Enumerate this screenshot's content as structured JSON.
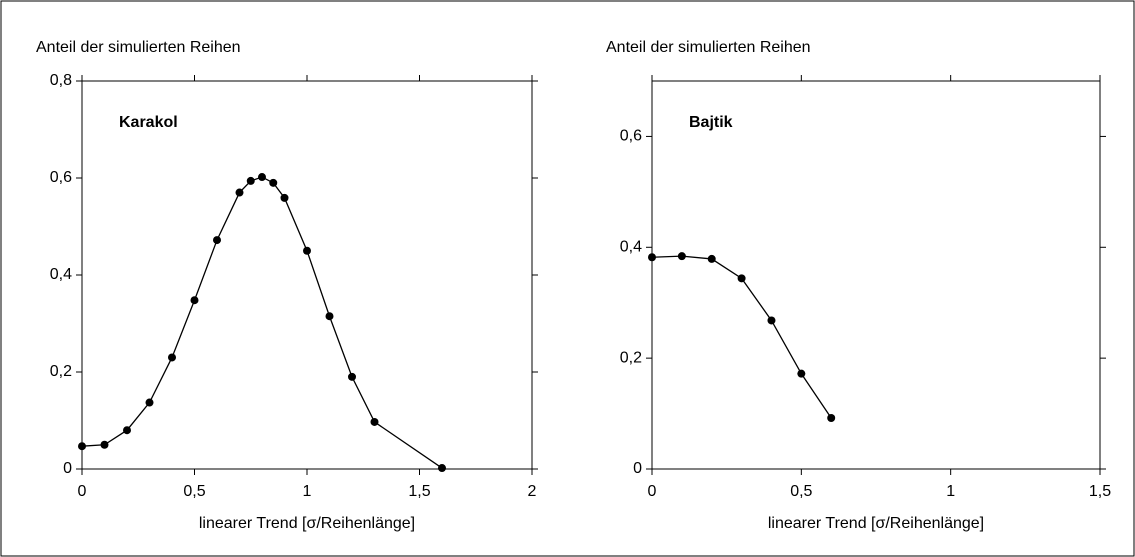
{
  "chart_data": [
    {
      "type": "line",
      "ylabel": "Anteil der simulierten Reihen",
      "xlabel": "linearer Trend [σ/Reihenlänge]",
      "annotation": "Karakol",
      "color": "#000000",
      "x": [
        0,
        0.1,
        0.2,
        0.3,
        0.4,
        0.5,
        0.6,
        0.7,
        0.75,
        0.8,
        0.85,
        0.9,
        1.0,
        1.1,
        1.2,
        1.3,
        1.6
      ],
      "values": [
        0.047,
        0.05,
        0.08,
        0.137,
        0.23,
        0.348,
        0.472,
        0.57,
        0.594,
        0.602,
        0.59,
        0.559,
        0.45,
        0.315,
        0.19,
        0.097,
        0.002
      ],
      "xlim": [
        0,
        2
      ],
      "ylim": [
        0,
        0.8
      ],
      "xticks": [
        0,
        {
          "value": 0.5,
          "label": "0,5"
        },
        1,
        {
          "value": 1.5,
          "label": "1,5"
        },
        2
      ],
      "yticks": [
        0,
        {
          "value": 0.2,
          "label": "0,2"
        },
        {
          "value": 0.4,
          "label": "0,4"
        },
        {
          "value": 0.6,
          "label": "0,6"
        },
        {
          "value": 0.8,
          "label": "0,8"
        }
      ]
    },
    {
      "type": "line",
      "ylabel": "Anteil der simulierten Reihen",
      "xlabel": "linearer Trend [σ/Reihenlänge]",
      "annotation": "Bajtik",
      "color": "#000000",
      "x": [
        0,
        0.1,
        0.2,
        0.3,
        0.4,
        0.5,
        0.6
      ],
      "values": [
        0.382,
        0.384,
        0.379,
        0.344,
        0.268,
        0.172,
        0.092
      ],
      "xlim": [
        0,
        1.5
      ],
      "ylim": [
        0,
        0.7
      ],
      "xticks": [
        0,
        {
          "value": 0.5,
          "label": "0,5"
        },
        1,
        {
          "value": 1.5,
          "label": "1,5"
        }
      ],
      "yticks": [
        0,
        {
          "value": 0.2,
          "label": "0,2"
        },
        {
          "value": 0.4,
          "label": "0,4"
        },
        {
          "value": 0.6,
          "label": "0,6"
        }
      ]
    }
  ]
}
